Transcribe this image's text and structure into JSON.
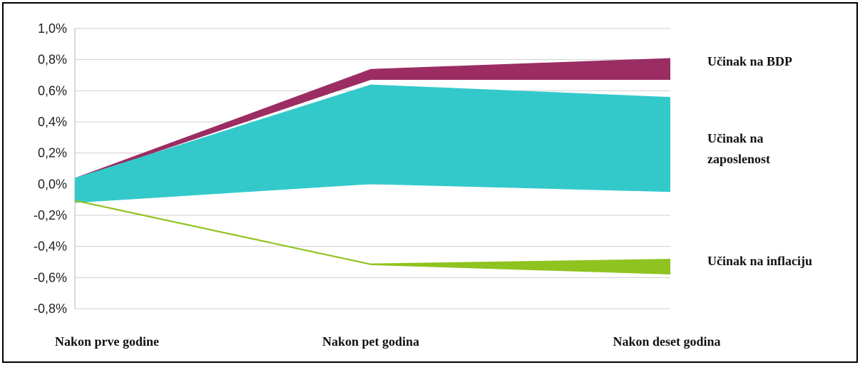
{
  "chart_data": {
    "type": "area",
    "categories": [
      "Nakon prve godine",
      "Nakon pet godina",
      "Nakon deset godina"
    ],
    "ylim": [
      -0.8,
      1.0
    ],
    "yticks": [
      1.0,
      0.8,
      0.6,
      0.4,
      0.2,
      0.0,
      -0.2,
      -0.4,
      -0.6,
      -0.8
    ],
    "ytick_labels": [
      "1,0%",
      "0,8%",
      "0,6%",
      "0,4%",
      "0,2%",
      "0,0%",
      "-0,2%",
      "-0,4%",
      "-0,6%",
      "-0,8%"
    ],
    "grid": true,
    "series": [
      {
        "name": "Učinak na BDP",
        "lower": [
          0.03,
          0.67,
          0.67
        ],
        "upper": [
          0.04,
          0.74,
          0.81
        ],
        "color": "#9b2d63"
      },
      {
        "name": "Učinak na zaposlenost",
        "lower": [
          -0.12,
          0.0,
          -0.05
        ],
        "upper": [
          0.04,
          0.64,
          0.56
        ],
        "color": "#33c9cb"
      },
      {
        "name": "Učinak na inflaciju",
        "lower": [
          -0.11,
          -0.52,
          -0.58
        ],
        "upper": [
          -0.1,
          -0.51,
          -0.48
        ],
        "color": "#8fc31f"
      }
    ],
    "legend_labels": [
      {
        "lines": [
          "Učinak na BDP"
        ]
      },
      {
        "lines": [
          "Učinak na",
          "zaposlenost"
        ]
      },
      {
        "lines": [
          "Učinak na inflaciju"
        ]
      }
    ]
  }
}
